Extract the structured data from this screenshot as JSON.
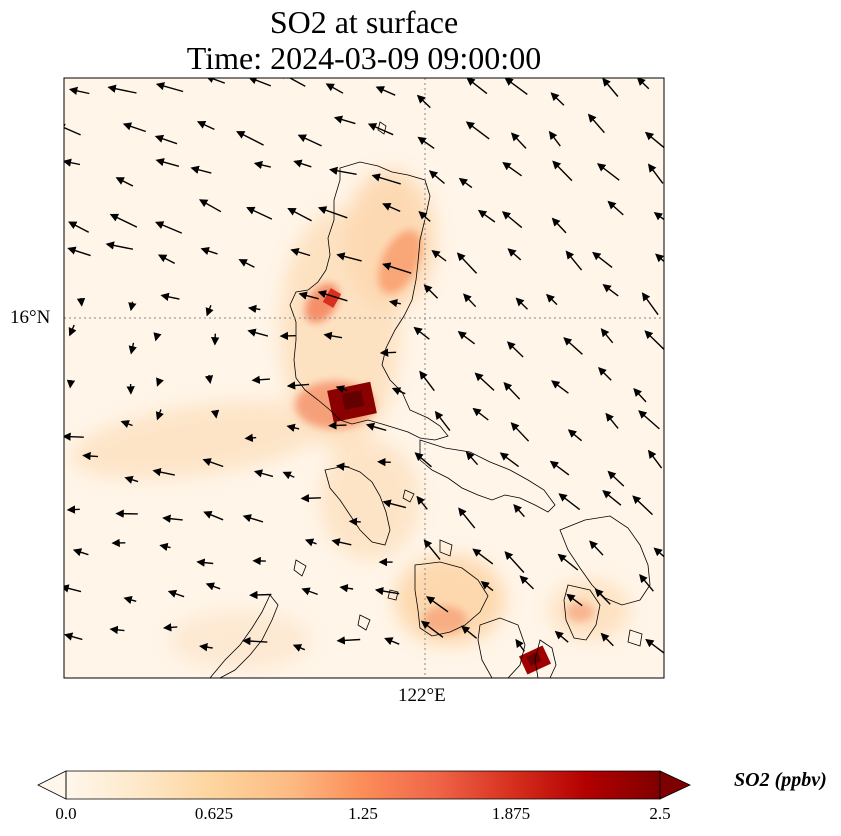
{
  "title": {
    "line1": "SO2 at surface",
    "line2": "Time: 2024-03-09 09:00:00"
  },
  "axes": {
    "lat_tick": "16°N",
    "lon_tick": "122°E"
  },
  "colorbar": {
    "label": "SO2 (ppbv)",
    "ticks": [
      "0.0",
      "0.625",
      "1.25",
      "1.875",
      "2.5"
    ],
    "range": [
      0.0,
      2.5
    ],
    "extend": "both",
    "colormap": "OrRd",
    "colors": [
      "#fff7ec",
      "#fee8c8",
      "#fdd49e",
      "#fdbb84",
      "#fc8d59",
      "#ef6548",
      "#d7301f",
      "#b30000",
      "#7f0000"
    ]
  },
  "colors": {
    "gridline": "#888888",
    "coastline": "#000000",
    "arrow": "#000000"
  }
}
